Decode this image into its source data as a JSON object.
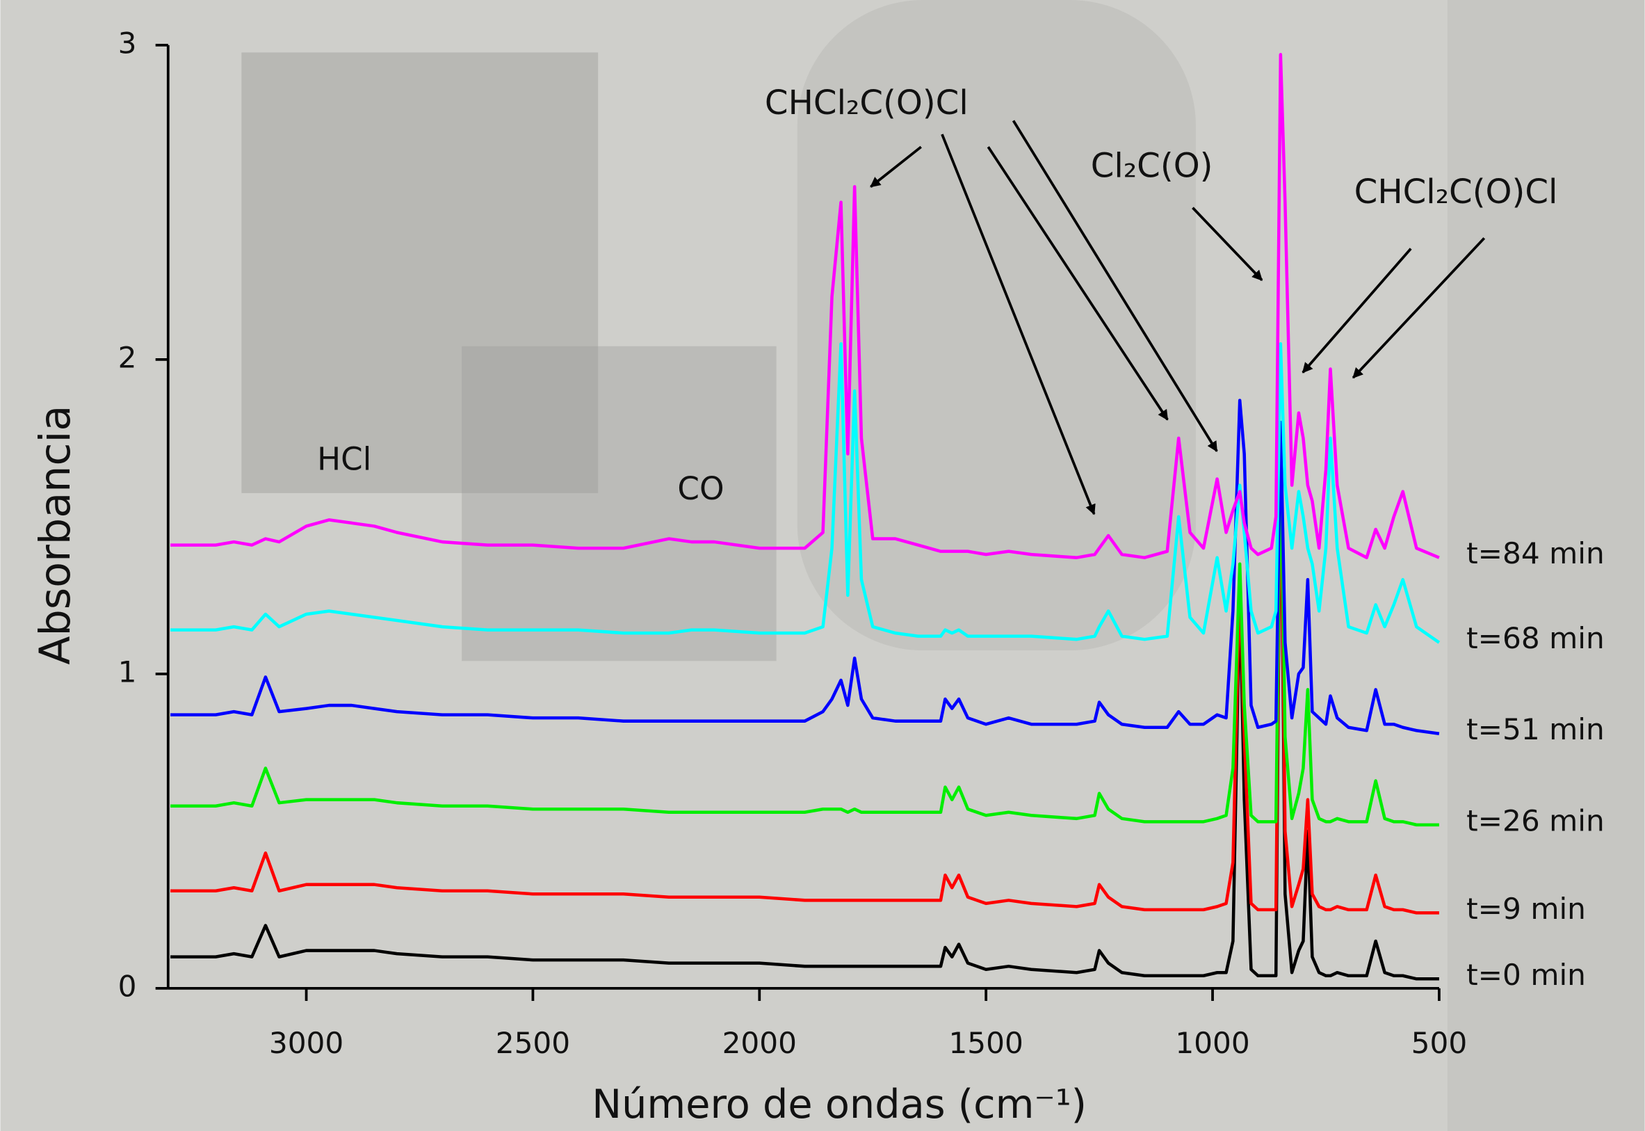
{
  "chart_data": {
    "type": "line",
    "x_label": "Número de ondas (cm⁻¹)",
    "y_label": "Absorbancia",
    "xlim": [
      3305,
      500
    ],
    "ylim": [
      0,
      3
    ],
    "xticks": [
      3000,
      2500,
      2000,
      1500,
      1000,
      500
    ],
    "yticks": [
      0,
      1,
      2,
      3
    ],
    "annotations": [
      "HCl",
      "CO",
      "CHCl₂C(O)Cl",
      "Cl₂C(O)",
      "CHCl₂C(O)Cl"
    ],
    "x": [
      3300,
      3200,
      3160,
      3120,
      3090,
      3060,
      3000,
      2950,
      2900,
      2850,
      2800,
      2700,
      2600,
      2500,
      2400,
      2300,
      2200,
      2150,
      2100,
      2000,
      1900,
      1860,
      1840,
      1820,
      1805,
      1790,
      1775,
      1750,
      1700,
      1650,
      1600,
      1590,
      1575,
      1560,
      1540,
      1500,
      1450,
      1400,
      1300,
      1260,
      1250,
      1230,
      1200,
      1150,
      1100,
      1075,
      1050,
      1020,
      990,
      970,
      955,
      940,
      930,
      915,
      900,
      870,
      860,
      850,
      840,
      825,
      810,
      800,
      790,
      780,
      765,
      750,
      740,
      725,
      700,
      660,
      640,
      620,
      600,
      580,
      550,
      500
    ],
    "series": [
      {
        "name": "t=0 min",
        "color": "#000000",
        "values": [
          0.1,
          0.1,
          0.11,
          0.1,
          0.2,
          0.1,
          0.12,
          0.12,
          0.12,
          0.12,
          0.11,
          0.1,
          0.1,
          0.09,
          0.09,
          0.09,
          0.08,
          0.08,
          0.08,
          0.08,
          0.07,
          0.07,
          0.07,
          0.07,
          0.07,
          0.07,
          0.07,
          0.07,
          0.07,
          0.07,
          0.07,
          0.13,
          0.1,
          0.14,
          0.08,
          0.06,
          0.07,
          0.06,
          0.05,
          0.06,
          0.12,
          0.08,
          0.05,
          0.04,
          0.04,
          0.04,
          0.04,
          0.04,
          0.05,
          0.05,
          0.15,
          1.27,
          0.6,
          0.06,
          0.04,
          0.04,
          0.04,
          1.8,
          0.3,
          0.05,
          0.12,
          0.15,
          0.5,
          0.1,
          0.05,
          0.04,
          0.04,
          0.05,
          0.04,
          0.04,
          0.15,
          0.05,
          0.04,
          0.04,
          0.03,
          0.03
        ]
      },
      {
        "name": "t=9 min",
        "color": "#ff0000",
        "values": [
          0.31,
          0.31,
          0.32,
          0.31,
          0.43,
          0.31,
          0.33,
          0.33,
          0.33,
          0.33,
          0.32,
          0.31,
          0.31,
          0.3,
          0.3,
          0.3,
          0.29,
          0.29,
          0.29,
          0.29,
          0.28,
          0.28,
          0.28,
          0.28,
          0.28,
          0.28,
          0.28,
          0.28,
          0.28,
          0.28,
          0.28,
          0.36,
          0.32,
          0.36,
          0.29,
          0.27,
          0.28,
          0.27,
          0.26,
          0.27,
          0.33,
          0.29,
          0.26,
          0.25,
          0.25,
          0.25,
          0.25,
          0.25,
          0.26,
          0.27,
          0.4,
          1.3,
          0.8,
          0.27,
          0.25,
          0.25,
          0.25,
          1.75,
          0.5,
          0.26,
          0.33,
          0.38,
          0.6,
          0.3,
          0.26,
          0.25,
          0.25,
          0.26,
          0.25,
          0.25,
          0.36,
          0.26,
          0.25,
          0.25,
          0.24,
          0.24
        ]
      },
      {
        "name": "t=26 min",
        "color": "#00ee00",
        "values": [
          0.58,
          0.58,
          0.59,
          0.58,
          0.7,
          0.59,
          0.6,
          0.6,
          0.6,
          0.6,
          0.59,
          0.58,
          0.58,
          0.57,
          0.57,
          0.57,
          0.56,
          0.56,
          0.56,
          0.56,
          0.56,
          0.57,
          0.57,
          0.57,
          0.56,
          0.57,
          0.56,
          0.56,
          0.56,
          0.56,
          0.56,
          0.64,
          0.6,
          0.64,
          0.57,
          0.55,
          0.56,
          0.55,
          0.54,
          0.55,
          0.62,
          0.57,
          0.54,
          0.53,
          0.53,
          0.53,
          0.53,
          0.53,
          0.54,
          0.55,
          0.7,
          1.35,
          0.9,
          0.55,
          0.53,
          0.53,
          0.53,
          1.75,
          0.8,
          0.54,
          0.62,
          0.7,
          0.95,
          0.6,
          0.54,
          0.53,
          0.53,
          0.54,
          0.53,
          0.53,
          0.66,
          0.54,
          0.53,
          0.53,
          0.52,
          0.52
        ]
      },
      {
        "name": "t=51 min",
        "color": "#0000ff",
        "values": [
          0.87,
          0.87,
          0.88,
          0.87,
          0.99,
          0.88,
          0.89,
          0.9,
          0.9,
          0.89,
          0.88,
          0.87,
          0.87,
          0.86,
          0.86,
          0.85,
          0.85,
          0.85,
          0.85,
          0.85,
          0.85,
          0.88,
          0.92,
          0.98,
          0.9,
          1.05,
          0.92,
          0.86,
          0.85,
          0.85,
          0.85,
          0.92,
          0.89,
          0.92,
          0.86,
          0.84,
          0.86,
          0.84,
          0.84,
          0.85,
          0.91,
          0.87,
          0.84,
          0.83,
          0.83,
          0.88,
          0.84,
          0.84,
          0.87,
          0.86,
          1.2,
          1.87,
          1.7,
          0.9,
          0.83,
          0.84,
          0.85,
          1.8,
          1.1,
          0.86,
          1.0,
          1.02,
          1.3,
          0.88,
          0.86,
          0.84,
          0.93,
          0.86,
          0.83,
          0.82,
          0.95,
          0.84,
          0.84,
          0.83,
          0.82,
          0.81
        ]
      },
      {
        "name": "t=68 min",
        "color": "#00ffff",
        "values": [
          1.14,
          1.14,
          1.15,
          1.14,
          1.19,
          1.15,
          1.19,
          1.2,
          1.19,
          1.18,
          1.17,
          1.15,
          1.14,
          1.14,
          1.14,
          1.13,
          1.13,
          1.14,
          1.14,
          1.13,
          1.13,
          1.15,
          1.4,
          2.05,
          1.25,
          1.9,
          1.3,
          1.15,
          1.13,
          1.12,
          1.12,
          1.14,
          1.13,
          1.14,
          1.12,
          1.12,
          1.12,
          1.12,
          1.11,
          1.12,
          1.15,
          1.2,
          1.12,
          1.11,
          1.12,
          1.5,
          1.18,
          1.13,
          1.37,
          1.2,
          1.35,
          1.6,
          1.45,
          1.2,
          1.13,
          1.15,
          1.2,
          2.05,
          1.6,
          1.4,
          1.58,
          1.5,
          1.4,
          1.35,
          1.2,
          1.4,
          1.75,
          1.4,
          1.15,
          1.13,
          1.22,
          1.15,
          1.22,
          1.3,
          1.15,
          1.1
        ]
      },
      {
        "name": "t=84 min",
        "color": "#ff00ff",
        "values": [
          1.41,
          1.41,
          1.42,
          1.41,
          1.43,
          1.42,
          1.47,
          1.49,
          1.48,
          1.47,
          1.45,
          1.42,
          1.41,
          1.41,
          1.4,
          1.4,
          1.43,
          1.42,
          1.42,
          1.4,
          1.4,
          1.45,
          2.2,
          2.5,
          1.7,
          2.55,
          1.75,
          1.43,
          1.43,
          1.41,
          1.39,
          1.39,
          1.39,
          1.39,
          1.39,
          1.38,
          1.39,
          1.38,
          1.37,
          1.38,
          1.4,
          1.44,
          1.38,
          1.37,
          1.39,
          1.75,
          1.45,
          1.4,
          1.62,
          1.45,
          1.52,
          1.58,
          1.48,
          1.4,
          1.38,
          1.4,
          1.5,
          2.97,
          2.5,
          1.6,
          1.83,
          1.75,
          1.6,
          1.55,
          1.4,
          1.65,
          1.97,
          1.6,
          1.4,
          1.37,
          1.46,
          1.4,
          1.5,
          1.58,
          1.4,
          1.37
        ]
      }
    ]
  }
}
